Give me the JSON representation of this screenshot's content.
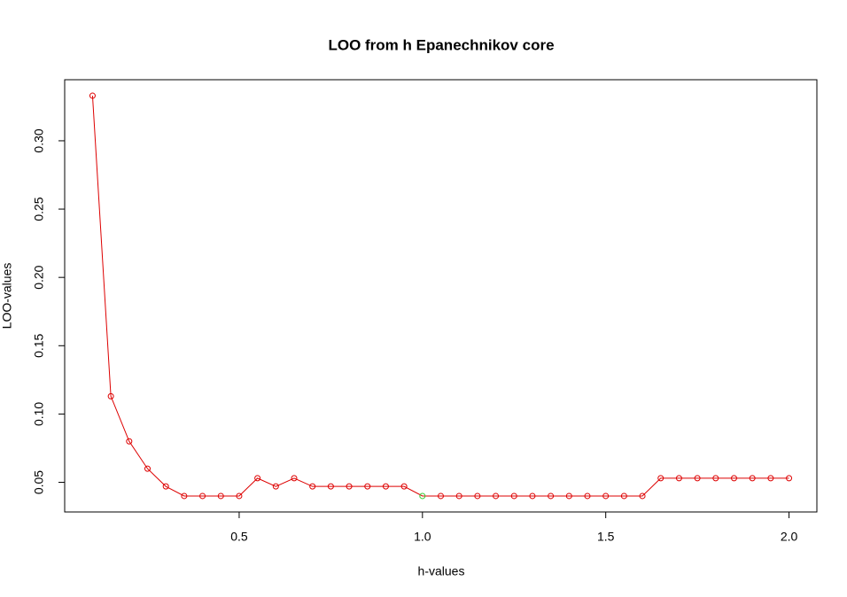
{
  "chart_data": {
    "type": "line",
    "title": "LOO from h Epanechnikov core",
    "x_label": "h-values",
    "y_label": "LOO-values",
    "x": [
      0.1,
      0.15,
      0.2,
      0.25,
      0.3,
      0.35,
      0.4,
      0.45,
      0.5,
      0.55,
      0.6,
      0.65,
      0.7,
      0.75,
      0.8,
      0.85,
      0.9,
      0.95,
      1.0,
      1.05,
      1.1,
      1.15,
      1.2,
      1.25,
      1.3,
      1.35,
      1.4,
      1.45,
      1.5,
      1.55,
      1.6,
      1.65,
      1.7,
      1.75,
      1.8,
      1.85,
      1.9,
      1.95,
      2.0
    ],
    "series": [
      {
        "color": "#dd0000",
        "values": [
          0.333,
          0.113,
          0.08,
          0.06,
          0.047,
          0.04,
          0.04,
          0.04,
          0.04,
          0.053,
          0.047,
          0.053,
          0.047,
          0.047,
          0.047,
          0.047,
          0.047,
          0.047,
          0.04,
          0.04,
          0.04,
          0.04,
          0.04,
          0.04,
          0.04,
          0.04,
          0.04,
          0.04,
          0.04,
          0.04,
          0.04,
          0.053,
          0.053,
          0.053,
          0.053,
          0.053,
          0.053,
          0.053,
          0.053
        ],
        "point_colors": [
          "#dd0000",
          "#dd0000",
          "#dd0000",
          "#dd0000",
          "#dd0000",
          "#dd0000",
          "#dd0000",
          "#dd0000",
          "#dd0000",
          "#dd0000",
          "#dd0000",
          "#dd0000",
          "#dd0000",
          "#dd0000",
          "#dd0000",
          "#dd0000",
          "#dd0000",
          "#dd0000",
          "#33cc33",
          "#dd0000",
          "#dd0000",
          "#dd0000",
          "#dd0000",
          "#dd0000",
          "#dd0000",
          "#dd0000",
          "#dd0000",
          "#dd0000",
          "#dd0000",
          "#dd0000",
          "#dd0000",
          "#dd0000",
          "#dd0000",
          "#dd0000",
          "#dd0000",
          "#dd0000",
          "#dd0000",
          "#dd0000",
          "#dd0000"
        ]
      }
    ],
    "xlim": [
      0.024,
      2.076
    ],
    "ylim": [
      0.0283,
      0.3447
    ],
    "xticks": [
      0.5,
      {
        "value": 1,
        "label": "1.0"
      },
      1.5,
      {
        "value": 2,
        "label": "2.0"
      }
    ],
    "yticks": [
      0.05,
      {
        "value": 0.1,
        "label": "0.10"
      },
      0.15,
      {
        "value": 0.2,
        "label": "0.20"
      },
      0.25,
      {
        "value": 0.3,
        "label": "0.30"
      }
    ]
  }
}
